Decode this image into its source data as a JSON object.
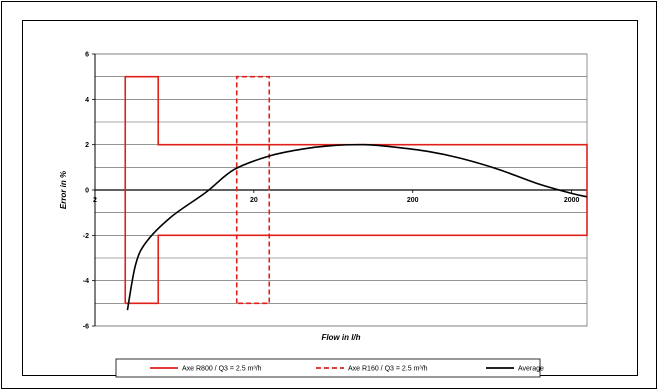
{
  "chart_data": {
    "type": "line",
    "title": "",
    "xlabel": "Flow in l/h",
    "ylabel": "Error in %",
    "x_scale": "log",
    "xlim": [
      2,
      2500
    ],
    "ylim": [
      -6,
      6
    ],
    "x_tick_labels": [
      "2",
      "20",
      "200",
      "2000"
    ],
    "y_tick_labels": [
      "6",
      "4",
      "2",
      "0",
      "-2",
      "-4",
      "-6"
    ],
    "grid": "horizontal",
    "legend_position": "bottom",
    "series": [
      {
        "name": "Axe R800 / Q3 = 2.5 m³/h",
        "color": "#e0201b",
        "style": "solid",
        "points": [
          [
            3.1,
            -5
          ],
          [
            3.1,
            5
          ],
          [
            5,
            5
          ],
          [
            5,
            2
          ],
          [
            2500,
            2
          ],
          [
            2500,
            -2
          ],
          [
            5,
            -2
          ],
          [
            5,
            -5
          ],
          [
            3.1,
            -5
          ]
        ]
      },
      {
        "name": "Axe R160 / Q3 = 2.5 m³/h",
        "color": "#e0201b",
        "style": "dashed",
        "points": [
          [
            15.6,
            -5
          ],
          [
            15.6,
            5
          ],
          [
            25,
            5
          ],
          [
            25,
            -5
          ],
          [
            15.6,
            -5
          ]
        ]
      },
      {
        "name": "Average",
        "color": "#000000",
        "style": "solid",
        "points": [
          [
            3.2,
            -5.3
          ],
          [
            3.6,
            -3.3
          ],
          [
            4.2,
            -2.3
          ],
          [
            6,
            -1.2
          ],
          [
            10,
            -0.1
          ],
          [
            15,
            0.9
          ],
          [
            25,
            1.5
          ],
          [
            40,
            1.8
          ],
          [
            60,
            1.95
          ],
          [
            100,
            2.0
          ],
          [
            150,
            1.9
          ],
          [
            250,
            1.7
          ],
          [
            400,
            1.4
          ],
          [
            700,
            0.9
          ],
          [
            1200,
            0.3
          ],
          [
            2000,
            -0.15
          ],
          [
            2500,
            -0.3
          ]
        ]
      }
    ]
  }
}
